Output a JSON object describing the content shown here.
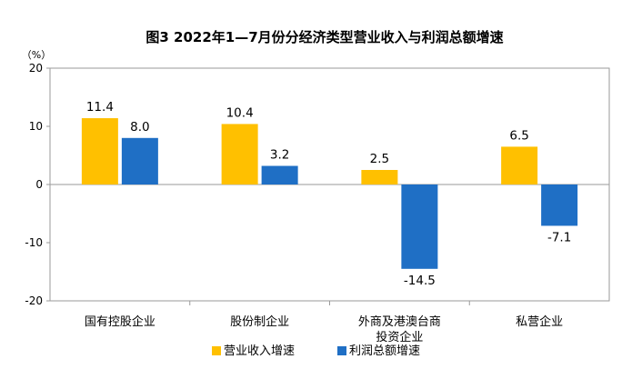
{
  "chart_data": {
    "type": "bar",
    "title": "图3 2022年1—7月份分经济类型营业收入与利润总额增速",
    "unit_label": "（%）",
    "ylim": [
      -20,
      20
    ],
    "yticks": [
      "20",
      "10",
      "0",
      "-10",
      "-20"
    ],
    "categories": [
      [
        "国有控股企业"
      ],
      [
        "股份制企业"
      ],
      [
        "外商及港澳台商",
        "投资企业"
      ],
      [
        "私营企业"
      ]
    ],
    "series": [
      {
        "name": "营业收入增速",
        "color": "#FFC000",
        "values": [
          11.4,
          10.4,
          2.5,
          6.5
        ],
        "labels": [
          "11.4",
          "10.4",
          "2.5",
          "6.5"
        ]
      },
      {
        "name": "利润总额增速",
        "color": "#1F6FC5",
        "values": [
          8.0,
          3.2,
          -14.5,
          -7.1
        ],
        "labels": [
          "8.0",
          "3.2",
          "-14.5",
          "-7.1"
        ]
      }
    ],
    "grid": false,
    "legend_position": "bottom-center"
  }
}
